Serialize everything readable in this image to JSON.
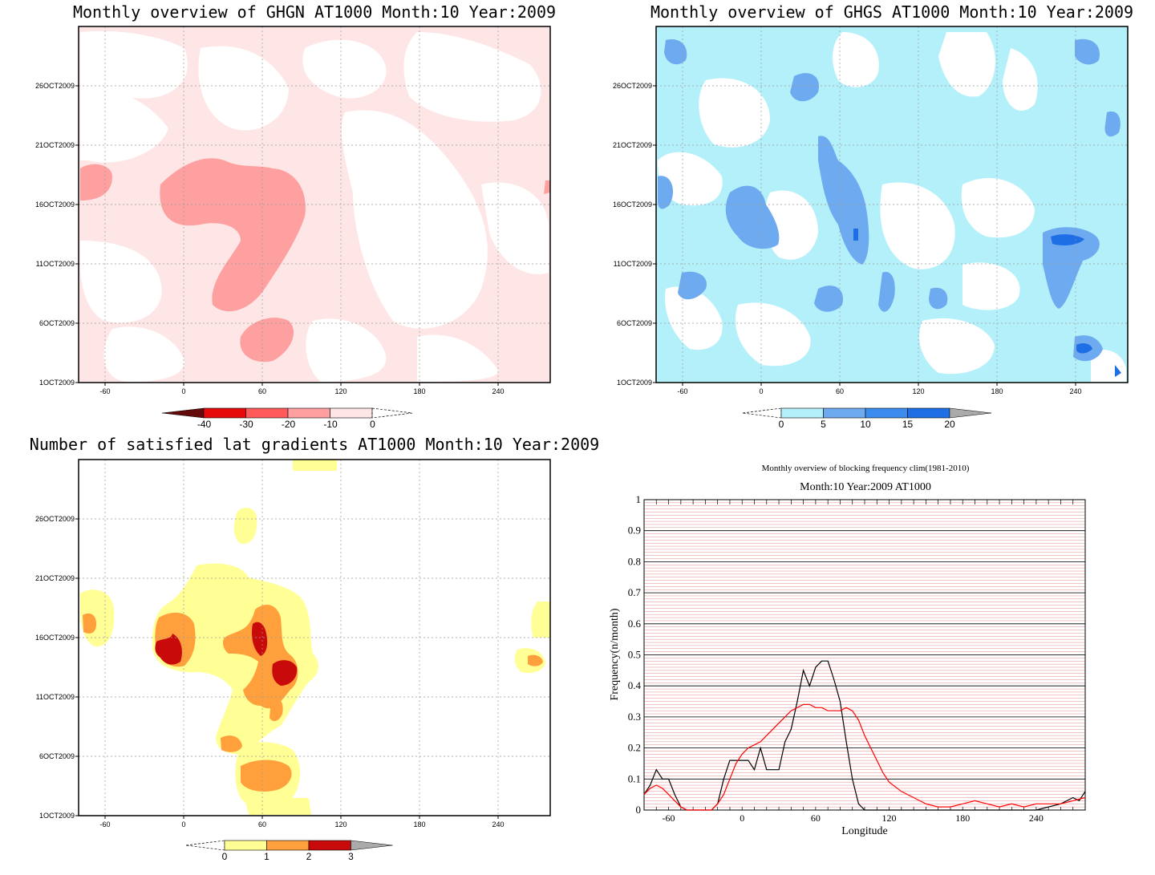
{
  "panels": {
    "ghgn": {
      "title": "Monthly overview of GHGN AT1000 Month:10 Year:2009",
      "x_ticks": [
        "-60",
        "0",
        "60",
        "120",
        "180",
        "240"
      ],
      "y_ticks": [
        "1OCT2009",
        "6OCT2009",
        "11OCT2009",
        "16OCT2009",
        "21OCT2009",
        "26OCT2009"
      ],
      "colorbar": {
        "labels": [
          "-40",
          "-30",
          "-20",
          "-10",
          "0"
        ],
        "colors": [
          "#640a0a",
          "#e60a0a",
          "#ff5a5a",
          "#ffa0a0",
          "#ffe6e6"
        ]
      }
    },
    "ghgs": {
      "title": "Monthly overview of GHGS AT1000 Month:10 Year:2009",
      "x_ticks": [
        "-60",
        "0",
        "60",
        "120",
        "180",
        "240"
      ],
      "y_ticks": [
        "1OCT2009",
        "6OCT2009",
        "11OCT2009",
        "16OCT2009",
        "21OCT2009",
        "26OCT2009"
      ],
      "colorbar": {
        "labels": [
          "0",
          "5",
          "10",
          "15",
          "20"
        ],
        "colors": [
          "#b4f0fa",
          "#6eaaf0",
          "#3c8cf0",
          "#1e6ee6",
          "#aaaaaa"
        ]
      }
    },
    "gradients": {
      "title": "Number of satisfied lat gradients AT1000 Month:10 Year:2009",
      "x_ticks": [
        "-60",
        "0",
        "60",
        "120",
        "180",
        "240"
      ],
      "y_ticks": [
        "1OCT2009",
        "6OCT2009",
        "11OCT2009",
        "16OCT2009",
        "21OCT2009",
        "26OCT2009"
      ],
      "colorbar": {
        "labels": [
          "0",
          "1",
          "2",
          "3"
        ],
        "colors": [
          "#ffff96",
          "#ffa03c",
          "#c80a0a",
          "#aaaaaa"
        ]
      }
    },
    "frequency": {
      "title": "Monthly overview of blocking frequency clim(1981-2010)",
      "subtitle": "Month:10 Year:2009  AT1000",
      "ylabel": "Frequency(n/month)",
      "xlabel": "Longitude",
      "x_ticks": [
        "-60",
        "0",
        "60",
        "120",
        "180",
        "240"
      ],
      "y_ticks": [
        "0",
        "0.1",
        "0.2",
        "0.3",
        "0.4",
        "0.5",
        "0.6",
        "0.7",
        "0.8",
        "0.9",
        "1"
      ]
    }
  },
  "chart_data": [
    {
      "type": "heatmap",
      "title": "Monthly overview of GHGN AT1000 Month:10 Year:2009",
      "x_range": [
        -80,
        280
      ],
      "y_range": [
        "1OCT2009",
        "31OCT2009"
      ],
      "levels": [
        -40,
        -30,
        -20,
        -10,
        0
      ],
      "colors": {
        "shallow_negative": "#ffe6e6",
        "moderate_negative": "#ffa0a0"
      }
    },
    {
      "type": "heatmap",
      "title": "Monthly overview of GHGS AT1000 Month:10 Year:2009",
      "x_range": [
        -80,
        280
      ],
      "y_range": [
        "1OCT2009",
        "31OCT2009"
      ],
      "levels": [
        0,
        5,
        10,
        15,
        20
      ],
      "colors": {
        "low": "#b4f0fa",
        "mid": "#6eaaf0",
        "high": "#1e6ee6"
      }
    },
    {
      "type": "heatmap",
      "title": "Number of satisfied lat gradients AT1000 Month:10 Year:2009",
      "x_range": [
        -80,
        280
      ],
      "y_range": [
        "1OCT2009",
        "31OCT2009"
      ],
      "levels": [
        0,
        1,
        2,
        3
      ]
    },
    {
      "type": "line",
      "title": "Monthly overview of blocking frequency clim(1981-2010)",
      "xlabel": "Longitude",
      "ylabel": "Frequency(n/month)",
      "xlim": [
        -80,
        280
      ],
      "ylim": [
        0,
        1
      ],
      "grid": true,
      "series": [
        {
          "color": "#000000",
          "x": [
            -80,
            -75,
            -70,
            -65,
            -60,
            -55,
            -50,
            -45,
            -40,
            -35,
            -30,
            -25,
            -20,
            -15,
            -10,
            -5,
            0,
            5,
            10,
            15,
            20,
            25,
            30,
            35,
            40,
            45,
            50,
            55,
            60,
            65,
            70,
            75,
            80,
            85,
            90,
            95,
            100,
            105,
            110,
            115,
            120,
            180,
            240,
            260,
            265,
            270,
            275,
            280
          ],
          "y": [
            0.05,
            0.08,
            0.13,
            0.1,
            0.1,
            0.05,
            0.01,
            0,
            0,
            0,
            0,
            0,
            0.02,
            0.1,
            0.16,
            0.16,
            0.16,
            0.16,
            0.13,
            0.2,
            0.13,
            0.13,
            0.13,
            0.22,
            0.26,
            0.35,
            0.45,
            0.4,
            0.46,
            0.48,
            0.48,
            0.42,
            0.35,
            0.22,
            0.1,
            0.02,
            0,
            0,
            0,
            0,
            0,
            0,
            0,
            0.02,
            0.03,
            0.04,
            0.03,
            0.06
          ]
        },
        {
          "color": "#ff0000",
          "x": [
            -80,
            -75,
            -70,
            -65,
            -60,
            -55,
            -50,
            -45,
            -40,
            -35,
            -30,
            -25,
            -20,
            -15,
            -10,
            -5,
            0,
            5,
            10,
            15,
            20,
            25,
            30,
            35,
            40,
            45,
            50,
            55,
            60,
            65,
            70,
            75,
            80,
            85,
            90,
            95,
            100,
            105,
            110,
            115,
            120,
            130,
            140,
            150,
            160,
            170,
            180,
            190,
            200,
            210,
            220,
            230,
            240,
            250,
            260,
            270,
            280
          ],
          "y": [
            0.05,
            0.07,
            0.08,
            0.07,
            0.05,
            0.03,
            0.01,
            0,
            0,
            0,
            0,
            0,
            0.02,
            0.05,
            0.1,
            0.15,
            0.18,
            0.2,
            0.21,
            0.22,
            0.24,
            0.26,
            0.28,
            0.3,
            0.32,
            0.33,
            0.34,
            0.34,
            0.33,
            0.33,
            0.32,
            0.32,
            0.32,
            0.33,
            0.32,
            0.29,
            0.24,
            0.2,
            0.16,
            0.12,
            0.09,
            0.06,
            0.04,
            0.02,
            0.01,
            0.01,
            0.02,
            0.03,
            0.02,
            0.01,
            0.02,
            0.01,
            0.02,
            0.02,
            0.02,
            0.03,
            0.04
          ]
        }
      ]
    }
  ]
}
